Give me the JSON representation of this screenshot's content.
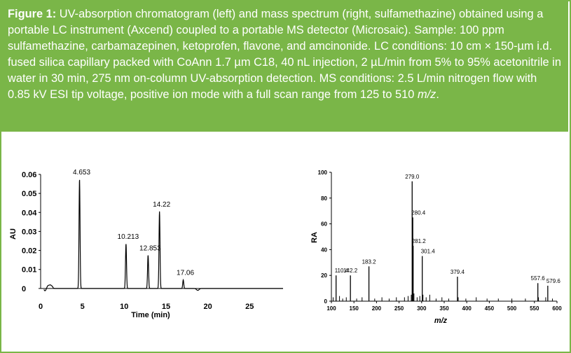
{
  "figure": {
    "label": "Figure 1:",
    "caption_text": "UV-absorption chromatogram (left) and mass spectrum (right, sulfamethazine) obtained using a portable LC instrument (Axcend) coupled to a portable MS detector (Microsaic). Sample: 100 ppm sulfamethazine, carbamazepinen, ketoprofen, flavone, and amcinonide. LC conditions: 10 cm × 150-µm i.d. fused silica capillary packed with CoAnn 1.7 µm C18, 40 nL injection, 2 µL/min from 5% to 95% acetonitrile in water in 30 min, 275 nm on-column UV-absorption detection. MS conditions: 2.5 L/min nitrogen flow with 0.85 kV ESI tip voltage, positive ion mode with a full scan range from 125 to 510",
    "caption_mz": "m/z",
    "caption_end": "."
  },
  "colors": {
    "caption_bg": "#7ab648",
    "trace": "#000000"
  },
  "chart_data": [
    {
      "type": "line",
      "xlabel": "Time (min)",
      "ylabel": "AU",
      "xlim": [
        0,
        29
      ],
      "ylim": [
        -0.003,
        0.06
      ],
      "x_ticks": [
        0,
        5,
        10,
        15,
        20,
        25
      ],
      "y_ticks": [
        0,
        0.01,
        0.02,
        0.03,
        0.04,
        0.05,
        0.06
      ],
      "y_tick_labels": [
        "0",
        "0.01",
        "0.02",
        "0.03",
        "0.04",
        "0.05",
        "0.06"
      ],
      "peaks": [
        {
          "rt": 4.653,
          "height": 0.0575,
          "label": "4.653"
        },
        {
          "rt": 10.213,
          "height": 0.0235,
          "label": "10.213"
        },
        {
          "rt": 12.853,
          "height": 0.0175,
          "label": "12.853"
        },
        {
          "rt": 14.22,
          "height": 0.0405,
          "label": "14.22"
        },
        {
          "rt": 17.06,
          "height": 0.0045,
          "label": "17.06"
        }
      ],
      "minor_peaks": [
        {
          "rt": 1.2,
          "height": 0.003
        },
        {
          "rt": 18.8,
          "height": -0.001
        }
      ]
    },
    {
      "type": "bar",
      "xlabel": "m/z",
      "ylabel": "RA",
      "xlim": [
        100,
        600
      ],
      "ylim": [
        0,
        100
      ],
      "x_ticks": [
        100,
        150,
        200,
        250,
        300,
        350,
        400,
        450,
        500,
        550,
        600
      ],
      "y_ticks": [
        0,
        20,
        40,
        60,
        80,
        100
      ],
      "labeled_peaks": [
        {
          "mz": 110.4,
          "ra": 20,
          "label": "110.4"
        },
        {
          "mz": 142.2,
          "ra": 20,
          "label": "142.2"
        },
        {
          "mz": 183.2,
          "ra": 27,
          "label": "183.2"
        },
        {
          "mz": 279.0,
          "ra": 93,
          "label": "279.0"
        },
        {
          "mz": 280.4,
          "ra": 65,
          "label": "280.4"
        },
        {
          "mz": 281.2,
          "ra": 43,
          "label": "281.2"
        },
        {
          "mz": 301.4,
          "ra": 35,
          "label": "301.4"
        },
        {
          "mz": 379.4,
          "ra": 19,
          "label": "379.4"
        },
        {
          "mz": 557.6,
          "ra": 14,
          "label": "557.6"
        },
        {
          "mz": 579.6,
          "ra": 12,
          "label": "579.6"
        }
      ],
      "minor_peaks": [
        {
          "mz": 104,
          "ra": 3
        },
        {
          "mz": 118,
          "ra": 4
        },
        {
          "mz": 125,
          "ra": 2
        },
        {
          "mz": 133,
          "ra": 3
        },
        {
          "mz": 156,
          "ra": 2
        },
        {
          "mz": 168,
          "ra": 3
        },
        {
          "mz": 196,
          "ra": 2
        },
        {
          "mz": 212,
          "ra": 3
        },
        {
          "mz": 228,
          "ra": 2
        },
        {
          "mz": 244,
          "ra": 3
        },
        {
          "mz": 262,
          "ra": 3
        },
        {
          "mz": 270,
          "ra": 4
        },
        {
          "mz": 277,
          "ra": 5
        },
        {
          "mz": 283,
          "ra": 6
        },
        {
          "mz": 290,
          "ra": 3
        },
        {
          "mz": 296,
          "ra": 4
        },
        {
          "mz": 303,
          "ra": 5
        },
        {
          "mz": 310,
          "ra": 3
        },
        {
          "mz": 318,
          "ra": 5
        },
        {
          "mz": 332,
          "ra": 2
        },
        {
          "mz": 345,
          "ra": 3
        },
        {
          "mz": 360,
          "ra": 2
        },
        {
          "mz": 381,
          "ra": 3
        },
        {
          "mz": 398,
          "ra": 2
        },
        {
          "mz": 421,
          "ra": 3
        },
        {
          "mz": 445,
          "ra": 2
        },
        {
          "mz": 470,
          "ra": 2
        },
        {
          "mz": 500,
          "ra": 2
        },
        {
          "mz": 530,
          "ra": 2
        },
        {
          "mz": 559,
          "ra": 3
        },
        {
          "mz": 575,
          "ra": 3
        },
        {
          "mz": 590,
          "ra": 2
        }
      ]
    }
  ]
}
